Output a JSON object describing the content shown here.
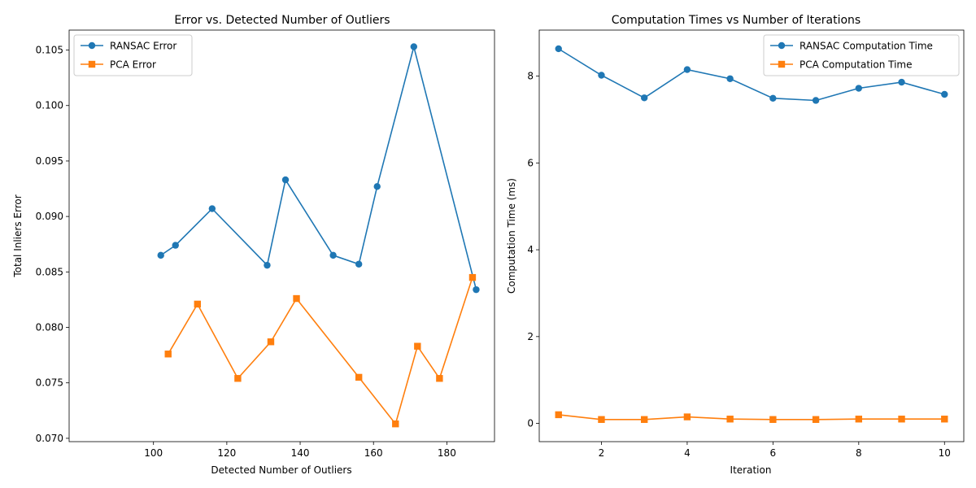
{
  "chart_data": [
    {
      "type": "line",
      "title": "Error vs. Detected Number of Outliers",
      "xlabel": "Detected Number of Outliers",
      "ylabel": "Total Inliers Error",
      "xlim": [
        77,
        193
      ],
      "ylim": [
        0.0697,
        0.1068
      ],
      "xticks": [
        100,
        120,
        140,
        160,
        180
      ],
      "yticks": [
        0.07,
        0.075,
        0.08,
        0.085,
        0.09,
        0.095,
        0.1,
        0.105
      ],
      "ytick_decimals": 3,
      "grid": false,
      "legend": "top-left",
      "series": [
        {
          "name": "RANSAC Error",
          "color": "#1f77b4",
          "marker": "circle",
          "x": [
            102,
            106,
            116,
            131,
            136,
            149,
            156,
            161,
            171,
            188
          ],
          "y": [
            0.0865,
            0.0874,
            0.0907,
            0.0856,
            0.0933,
            0.0865,
            0.0857,
            0.0927,
            0.1053,
            0.0834
          ]
        },
        {
          "name": "PCA Error",
          "color": "#ff7f0e",
          "marker": "square",
          "x": [
            104,
            112,
            123,
            132,
            139,
            156,
            166,
            172,
            178,
            187
          ],
          "y": [
            0.0776,
            0.0821,
            0.0754,
            0.0787,
            0.0826,
            0.0755,
            0.0713,
            0.0783,
            0.0754,
            0.0845
          ]
        }
      ]
    },
    {
      "type": "line",
      "title": "Computation Times vs Number of Iterations",
      "xlabel": "Iteration",
      "ylabel": "Computation Time (ms)",
      "xlim": [
        0.55,
        10.45
      ],
      "ylim": [
        -0.42,
        9.06
      ],
      "xticks": [
        2,
        4,
        6,
        8,
        10
      ],
      "yticks": [
        0,
        2,
        4,
        6,
        8
      ],
      "ytick_decimals": 0,
      "grid": false,
      "legend": "top-right",
      "series": [
        {
          "name": "RANSAC Computation Time",
          "color": "#1f77b4",
          "marker": "circle",
          "x": [
            1,
            2,
            3,
            4,
            5,
            6,
            7,
            8,
            9,
            10
          ],
          "y": [
            8.63,
            8.02,
            7.5,
            8.15,
            7.94,
            7.49,
            7.44,
            7.72,
            7.86,
            7.58
          ]
        },
        {
          "name": "PCA Computation Time",
          "color": "#ff7f0e",
          "marker": "square",
          "x": [
            1,
            2,
            3,
            4,
            5,
            6,
            7,
            8,
            9,
            10
          ],
          "y": [
            0.2,
            0.09,
            0.09,
            0.15,
            0.1,
            0.09,
            0.09,
            0.1,
            0.1,
            0.1
          ]
        }
      ]
    }
  ]
}
